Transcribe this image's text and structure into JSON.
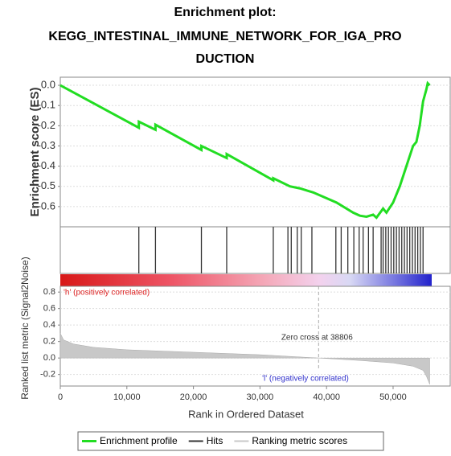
{
  "title": "Enrichment plot:",
  "subtitle": [
    "KEGG_INTESTINAL_IMMUNE_NETWORK_FOR_IGA_PRO",
    "DUCTION"
  ],
  "chart_data": [
    {
      "type": "line",
      "name": "Enrichment profile",
      "color": "#22dd22",
      "ylabel": "Enrichment score (ES)",
      "x": [
        0,
        11800,
        11800,
        14300,
        14300,
        21200,
        21200,
        25000,
        25000,
        32000,
        32000,
        34500,
        36000,
        38000,
        41500,
        44000,
        45000,
        46000,
        47000,
        47500,
        48500,
        49000,
        50000,
        51000,
        52000,
        53000,
        53500,
        54000,
        54500,
        55000,
        55200,
        55500
      ],
      "values": [
        0,
        -0.21,
        -0.18,
        -0.22,
        -0.195,
        -0.32,
        -0.3,
        -0.36,
        -0.34,
        -0.47,
        -0.46,
        -0.5,
        -0.51,
        -0.53,
        -0.58,
        -0.63,
        -0.645,
        -0.65,
        -0.64,
        -0.655,
        -0.61,
        -0.63,
        -0.58,
        -0.5,
        -0.4,
        -0.3,
        -0.28,
        -0.2,
        -0.08,
        -0.02,
        0.01,
        0.0
      ],
      "xlim": [
        0,
        55800
      ],
      "ylim": [
        -0.7,
        0.04
      ],
      "yticks": [
        {
          "value": 0,
          "label": "0.0"
        },
        -0.1,
        -0.2,
        -0.3,
        -0.4,
        -0.5,
        -0.6
      ],
      "grid": true
    },
    {
      "type": "rug",
      "name": "Hits",
      "color": "#333333",
      "x": [
        11800,
        14300,
        21200,
        25000,
        32000,
        34200,
        34700,
        35600,
        36200,
        37800,
        41400,
        42200,
        43200,
        44100,
        44900,
        45500,
        46300,
        47000,
        48200,
        48500,
        48900,
        49300,
        49700,
        50100,
        50500,
        50900,
        51300,
        51700,
        52100,
        52500,
        52900,
        53300,
        53700,
        54100,
        54500
      ],
      "xlim": [
        0,
        55800
      ]
    },
    {
      "type": "area",
      "name": "Ranking metric scores",
      "color": "#c8c8c8",
      "ylabel": "Ranked list metric (Signal2Noise)",
      "xlabel": "Rank in Ordered Dataset",
      "x": [
        0,
        500,
        2000,
        5000,
        10000,
        20000,
        30000,
        38806,
        45000,
        50000,
        53000,
        54500,
        55000,
        55500
      ],
      "values": [
        0.3,
        0.22,
        0.17,
        0.13,
        0.1,
        0.07,
        0.04,
        0,
        -0.03,
        -0.06,
        -0.1,
        -0.15,
        -0.22,
        -0.32
      ],
      "xlim": [
        0,
        55800
      ],
      "ylim": [
        -0.34,
        0.87
      ],
      "yticks": [
        0.8,
        0.6,
        0.4,
        0.2,
        {
          "value": 0,
          "label": "0.0"
        },
        -0.2
      ],
      "xticks": [
        0,
        {
          "value": 10000,
          "label": "10,000"
        },
        {
          "value": 20000,
          "label": "20,000"
        },
        {
          "value": 30000,
          "label": "30,000"
        },
        {
          "value": 40000,
          "label": "40,000"
        },
        {
          "value": 50000,
          "label": "50,000"
        }
      ],
      "zero_cross": {
        "value": 38806,
        "label": "Zero cross at 38806"
      },
      "pos_label": "'h' (positively correlated)",
      "neg_label": "'l' (negatively correlated)",
      "grid": true
    }
  ]
}
